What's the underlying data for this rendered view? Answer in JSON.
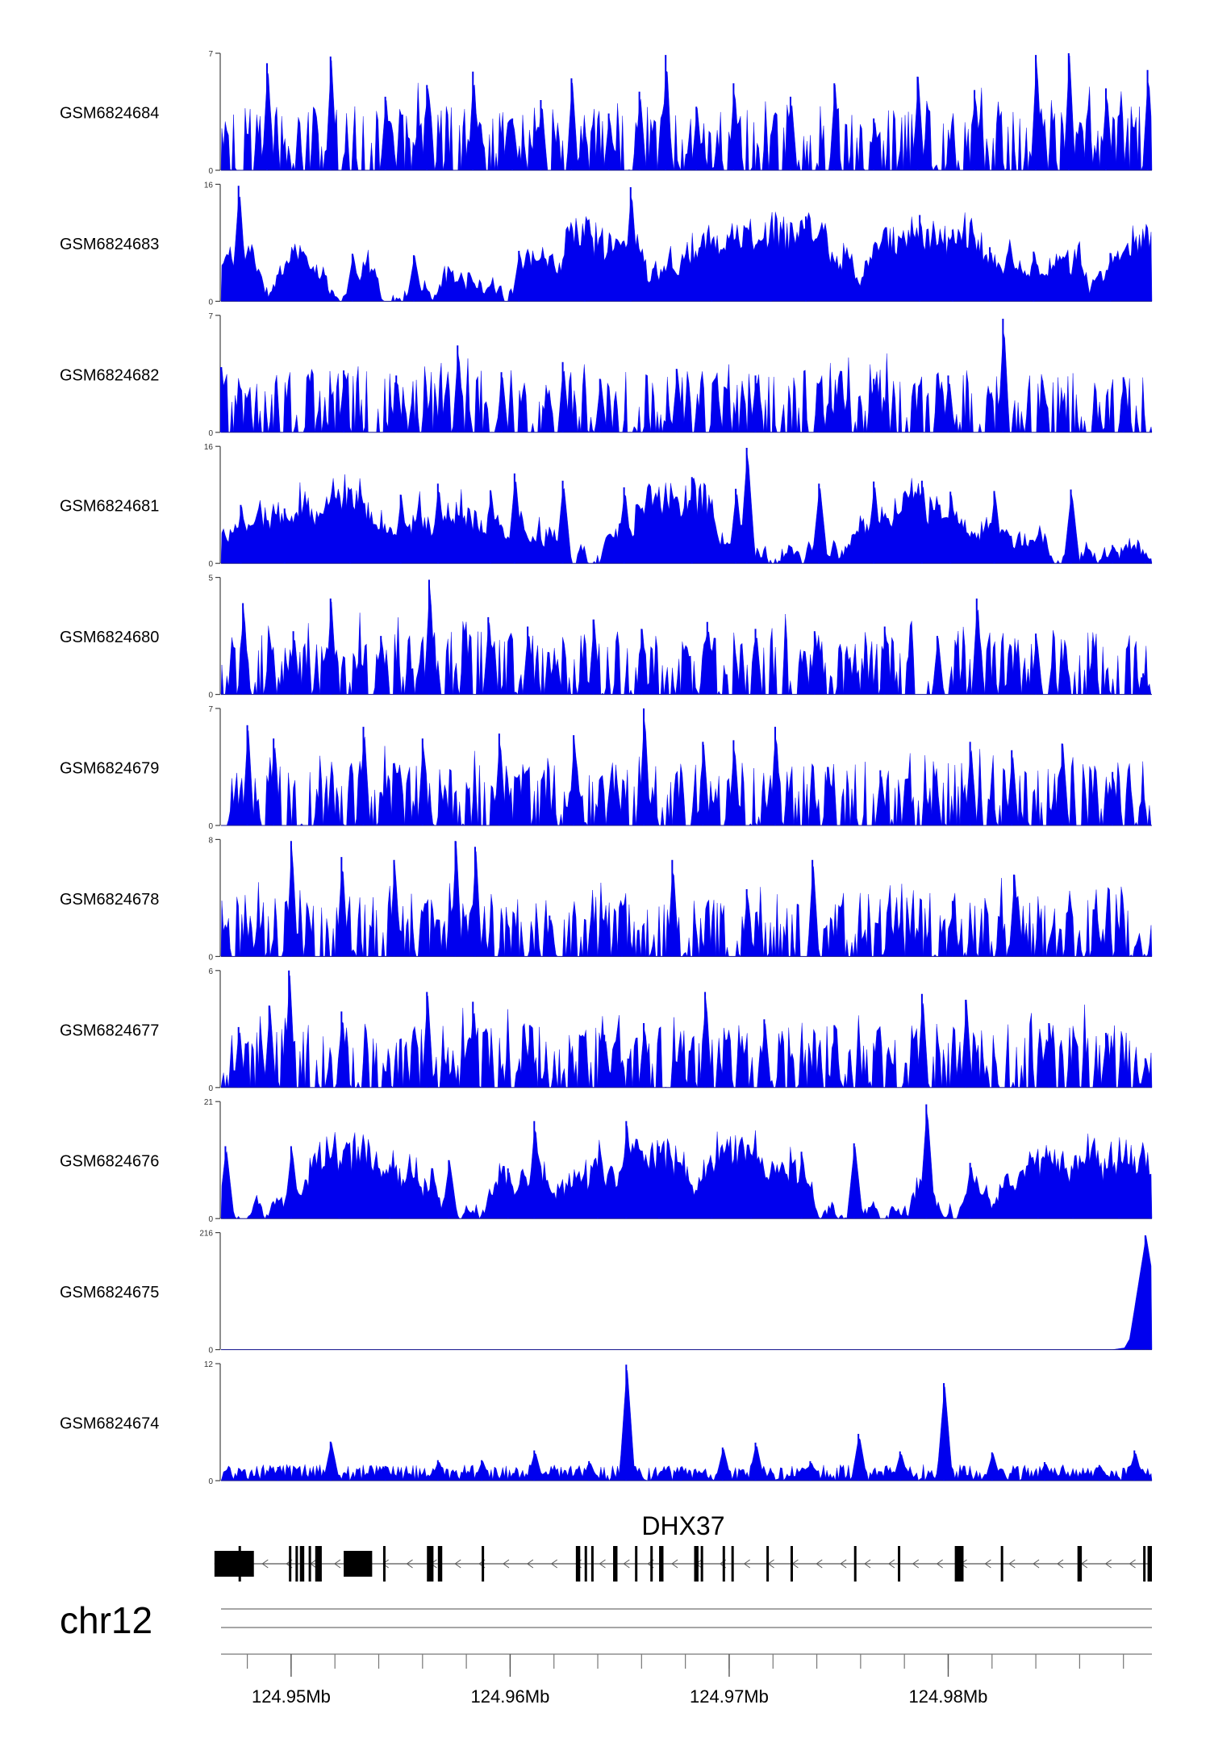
{
  "chart_data": {
    "type": "area",
    "chromosome": "chr12",
    "gene": {
      "name": "DHX37",
      "strand": "-",
      "start_mb": 124.9465,
      "end_mb": 124.9893,
      "exons_mb": [
        [
          124.9465,
          124.9483
        ],
        [
          124.9476,
          124.9477
        ],
        [
          124.9499,
          124.95
        ],
        [
          124.9502,
          124.9503
        ],
        [
          124.9504,
          124.9506
        ],
        [
          124.9508,
          124.9509
        ],
        [
          124.9511,
          124.9514
        ],
        [
          124.9524,
          124.9537
        ],
        [
          124.9542,
          124.9543
        ],
        [
          124.9562,
          124.9565
        ],
        [
          124.9567,
          124.9569
        ],
        [
          124.9587,
          124.9588
        ],
        [
          124.963,
          124.9632
        ],
        [
          124.9634,
          124.9635
        ],
        [
          124.9637,
          124.9638
        ],
        [
          124.9647,
          124.9649
        ],
        [
          124.9657,
          124.9658
        ],
        [
          124.9664,
          124.9665
        ],
        [
          124.9668,
          124.967
        ],
        [
          124.9684,
          124.9686
        ],
        [
          124.9687,
          124.9688
        ],
        [
          124.9697,
          124.9698
        ],
        [
          124.9701,
          124.9702
        ],
        [
          124.9717,
          124.9718
        ],
        [
          124.9728,
          124.9729
        ],
        [
          124.9757,
          124.9758
        ],
        [
          124.9777,
          124.9778
        ],
        [
          124.9803,
          124.9807
        ],
        [
          124.9824,
          124.9825
        ],
        [
          124.9859,
          124.9861
        ],
        [
          124.9889,
          124.989
        ],
        [
          124.9891,
          124.9893
        ]
      ]
    },
    "x_axis": {
      "range_mb": [
        124.9468,
        124.9893
      ],
      "tick_values_mb": [
        124.95,
        124.96,
        124.97,
        124.98
      ],
      "tick_labels": [
        "124.95Mb",
        "124.96Mb",
        "124.97Mb",
        "124.98Mb"
      ],
      "minor_tick_step_mb": 0.002
    },
    "series": [
      {
        "name": "GSM6824684",
        "ymax": 7,
        "y_tick_labels": [
          "0",
          "7"
        ],
        "color": "#0000ee",
        "peaks": [
          [
            124.9489,
            6.4
          ],
          [
            124.9518,
            6.8
          ],
          [
            124.9543,
            4.4
          ],
          [
            124.9562,
            5.1
          ],
          [
            124.9583,
            5.9
          ],
          [
            124.9601,
            3.1
          ],
          [
            124.9614,
            4.2
          ],
          [
            124.9628,
            5.5
          ],
          [
            124.9645,
            3.4
          ],
          [
            124.9659,
            4.7
          ],
          [
            124.9671,
            6.9
          ],
          [
            124.9685,
            3.8
          ],
          [
            124.9702,
            5.2
          ],
          [
            124.9728,
            4.4
          ],
          [
            124.9748,
            5.2
          ],
          [
            124.9766,
            3.1
          ],
          [
            124.9786,
            5.6
          ],
          [
            124.9812,
            4.8
          ],
          [
            124.984,
            6.9
          ],
          [
            124.9855,
            7.0
          ],
          [
            124.9872,
            4.9
          ],
          [
            124.9891,
            6.0
          ]
        ]
      },
      {
        "name": "GSM6824683",
        "ymax": 16,
        "y_tick_labels": [
          "0",
          "16"
        ],
        "color": "#0000ee",
        "peaks": [
          [
            124.9476,
            15.8
          ],
          [
            124.9528,
            6.5
          ],
          [
            124.9556,
            6.3
          ],
          [
            124.9604,
            6.9
          ],
          [
            124.9634,
            7.2
          ],
          [
            124.9655,
            15.6
          ],
          [
            124.9692,
            6.4
          ],
          [
            124.9719,
            7.3
          ],
          [
            124.9735,
            11.6
          ],
          [
            124.9787,
            11.8
          ],
          [
            124.9802,
            9.8
          ],
          [
            124.9819,
            7.4
          ],
          [
            124.9839,
            6.8
          ],
          [
            124.9874,
            6.6
          ]
        ]
      },
      {
        "name": "GSM6824682",
        "ymax": 7,
        "y_tick_labels": [
          "0",
          "7"
        ],
        "color": "#0000ee",
        "peaks": [
          [
            124.9468,
            3.9
          ],
          [
            124.9524,
            3.7
          ],
          [
            124.9548,
            3.4
          ],
          [
            124.9576,
            5.2
          ],
          [
            124.9596,
            3.6
          ],
          [
            124.9624,
            4.2
          ],
          [
            124.9641,
            3.2
          ],
          [
            124.9676,
            3.8
          ],
          [
            124.9694,
            2.9
          ],
          [
            124.9712,
            3.4
          ],
          [
            124.9741,
            2.9
          ],
          [
            124.9766,
            3.2
          ],
          [
            124.98,
            3.4
          ],
          [
            124.9825,
            6.8
          ],
          [
            124.9843,
            3.1
          ],
          [
            124.988,
            3.3
          ]
        ]
      },
      {
        "name": "GSM6824681",
        "ymax": 16,
        "y_tick_labels": [
          "0",
          "16"
        ],
        "color": "#0000ee",
        "peaks": [
          [
            124.9477,
            8.0
          ],
          [
            124.9497,
            7.5
          ],
          [
            124.9527,
            5.4
          ],
          [
            124.955,
            9.4
          ],
          [
            124.9567,
            10.9
          ],
          [
            124.9591,
            10.0
          ],
          [
            124.9602,
            12.3
          ],
          [
            124.9624,
            11.3
          ],
          [
            124.9652,
            10.4
          ],
          [
            124.9683,
            11.8
          ],
          [
            124.9703,
            10.2
          ],
          [
            124.9708,
            15.8
          ],
          [
            124.9741,
            10.9
          ],
          [
            124.9766,
            11.2
          ],
          [
            124.9788,
            11.3
          ],
          [
            124.9801,
            9.8
          ],
          [
            124.9821,
            9.9
          ],
          [
            124.9856,
            10.1
          ],
          [
            124.9875,
            2.5
          ],
          [
            124.989,
            1.0
          ]
        ]
      },
      {
        "name": "GSM6824680",
        "ymax": 5,
        "y_tick_labels": [
          "0",
          "5"
        ],
        "color": "#0000ee",
        "peaks": [
          [
            124.9478,
            3.9
          ],
          [
            124.9501,
            2.7
          ],
          [
            124.9518,
            4.1
          ],
          [
            124.9541,
            2.5
          ],
          [
            124.9563,
            4.9
          ],
          [
            124.959,
            3.3
          ],
          [
            124.9608,
            2.9
          ],
          [
            124.9638,
            3.2
          ],
          [
            124.966,
            2.8
          ],
          [
            124.969,
            3.1
          ],
          [
            124.9712,
            2.8
          ],
          [
            124.9739,
            2.7
          ],
          [
            124.9771,
            2.9
          ],
          [
            124.9795,
            2.5
          ],
          [
            124.9813,
            4.1
          ],
          [
            124.984,
            2.6
          ],
          [
            124.9866,
            2.3
          ],
          [
            124.9889,
            0.9
          ]
        ]
      },
      {
        "name": "GSM6824679",
        "ymax": 7,
        "y_tick_labels": [
          "0",
          "7"
        ],
        "color": "#0000ee",
        "peaks": [
          [
            124.948,
            6.0
          ],
          [
            124.9492,
            5.2
          ],
          [
            124.9533,
            5.9
          ],
          [
            124.956,
            5.2
          ],
          [
            124.9595,
            5.5
          ],
          [
            124.9629,
            5.4
          ],
          [
            124.9661,
            7.0
          ],
          [
            124.9688,
            5.0
          ],
          [
            124.9702,
            5.1
          ],
          [
            124.9721,
            5.9
          ],
          [
            124.9745,
            3.5
          ],
          [
            124.9769,
            3.3
          ],
          [
            124.981,
            5.0
          ],
          [
            124.9829,
            4.5
          ],
          [
            124.9852,
            4.9
          ],
          [
            124.9875,
            3.2
          ]
        ]
      },
      {
        "name": "GSM6824678",
        "ymax": 8,
        "y_tick_labels": [
          "0",
          "8"
        ],
        "color": "#0000ee",
        "peaks": [
          [
            124.9479,
            2.2
          ],
          [
            124.95,
            7.9
          ],
          [
            124.9523,
            6.8
          ],
          [
            124.9547,
            6.6
          ],
          [
            124.9575,
            7.9
          ],
          [
            124.9584,
            7.5
          ],
          [
            124.9618,
            2.8
          ],
          [
            124.9651,
            3.4
          ],
          [
            124.9674,
            6.6
          ],
          [
            124.9708,
            4.6
          ],
          [
            124.9738,
            6.6
          ],
          [
            124.9773,
            3.0
          ],
          [
            124.9802,
            3.8
          ],
          [
            124.983,
            5.6
          ],
          [
            124.9868,
            1.9
          ]
        ]
      },
      {
        "name": "GSM6824677",
        "ymax": 6,
        "y_tick_labels": [
          "0",
          "6"
        ],
        "color": "#0000ee",
        "peaks": [
          [
            124.9476,
            3.1
          ],
          [
            124.949,
            4.2
          ],
          [
            124.9499,
            6.0
          ],
          [
            124.9523,
            3.9
          ],
          [
            124.9562,
            4.9
          ],
          [
            124.9583,
            4.4
          ],
          [
            124.9609,
            3.2
          ],
          [
            124.9643,
            2.7
          ],
          [
            124.9661,
            3.3
          ],
          [
            124.9689,
            4.9
          ],
          [
            124.9716,
            3.5
          ],
          [
            124.9748,
            3.2
          ],
          [
            124.9788,
            4.8
          ],
          [
            124.9808,
            4.5
          ],
          [
            124.9846,
            3.3
          ],
          [
            124.9872,
            2.8
          ],
          [
            124.989,
            1.5
          ]
        ]
      },
      {
        "name": "GSM6824676",
        "ymax": 21,
        "y_tick_labels": [
          "0",
          "21"
        ],
        "color": "#0000ee",
        "peaks": [
          [
            124.947,
            13.0
          ],
          [
            124.95,
            13.0
          ],
          [
            124.9522,
            9.0
          ],
          [
            124.9545,
            8.5
          ],
          [
            124.9572,
            10.5
          ],
          [
            124.9599,
            9.0
          ],
          [
            124.9611,
            17.5
          ],
          [
            124.964,
            9.0
          ],
          [
            124.9653,
            17.5
          ],
          [
            124.9668,
            13.0
          ],
          [
            124.9692,
            10.0
          ],
          [
            124.971,
            11.5
          ],
          [
            124.9733,
            12.0
          ],
          [
            124.9757,
            13.5
          ],
          [
            124.979,
            20.5
          ],
          [
            124.981,
            10.0
          ],
          [
            124.9841,
            8.0
          ],
          [
            124.9857,
            8.5
          ],
          [
            124.9878,
            1.5
          ],
          [
            124.9892,
            0.8
          ]
        ]
      },
      {
        "name": "GSM6824675",
        "ymax": 216,
        "y_tick_labels": [
          "0",
          "216"
        ],
        "color": "#0000ee",
        "peaks": [
          [
            124.9883,
            5.0
          ],
          [
            124.9888,
            60.0
          ],
          [
            124.989,
            211.0
          ],
          [
            124.9892,
            45.0
          ]
        ]
      },
      {
        "name": "GSM6824674",
        "ymax": 12,
        "y_tick_labels": [
          "0",
          "12"
        ],
        "color": "#0000ee",
        "peaks": [
          [
            124.9477,
            0.9
          ],
          [
            124.9494,
            1.4
          ],
          [
            124.9518,
            4.0
          ],
          [
            124.9543,
            1.5
          ],
          [
            124.9567,
            2.1
          ],
          [
            124.9587,
            2.1
          ],
          [
            124.9611,
            3.1
          ],
          [
            124.9636,
            2.0
          ],
          [
            124.9653,
            11.9
          ],
          [
            124.9678,
            1.3
          ],
          [
            124.9697,
            3.4
          ],
          [
            124.9712,
            3.9
          ],
          [
            124.9737,
            2.0
          ],
          [
            124.9759,
            4.8
          ],
          [
            124.9778,
            3.0
          ],
          [
            124.9798,
            10.0
          ],
          [
            124.982,
            2.9
          ],
          [
            124.9844,
            1.9
          ],
          [
            124.9869,
            1.6
          ],
          [
            124.9885,
            3.1
          ]
        ]
      }
    ],
    "grid": false,
    "legend": "none"
  }
}
